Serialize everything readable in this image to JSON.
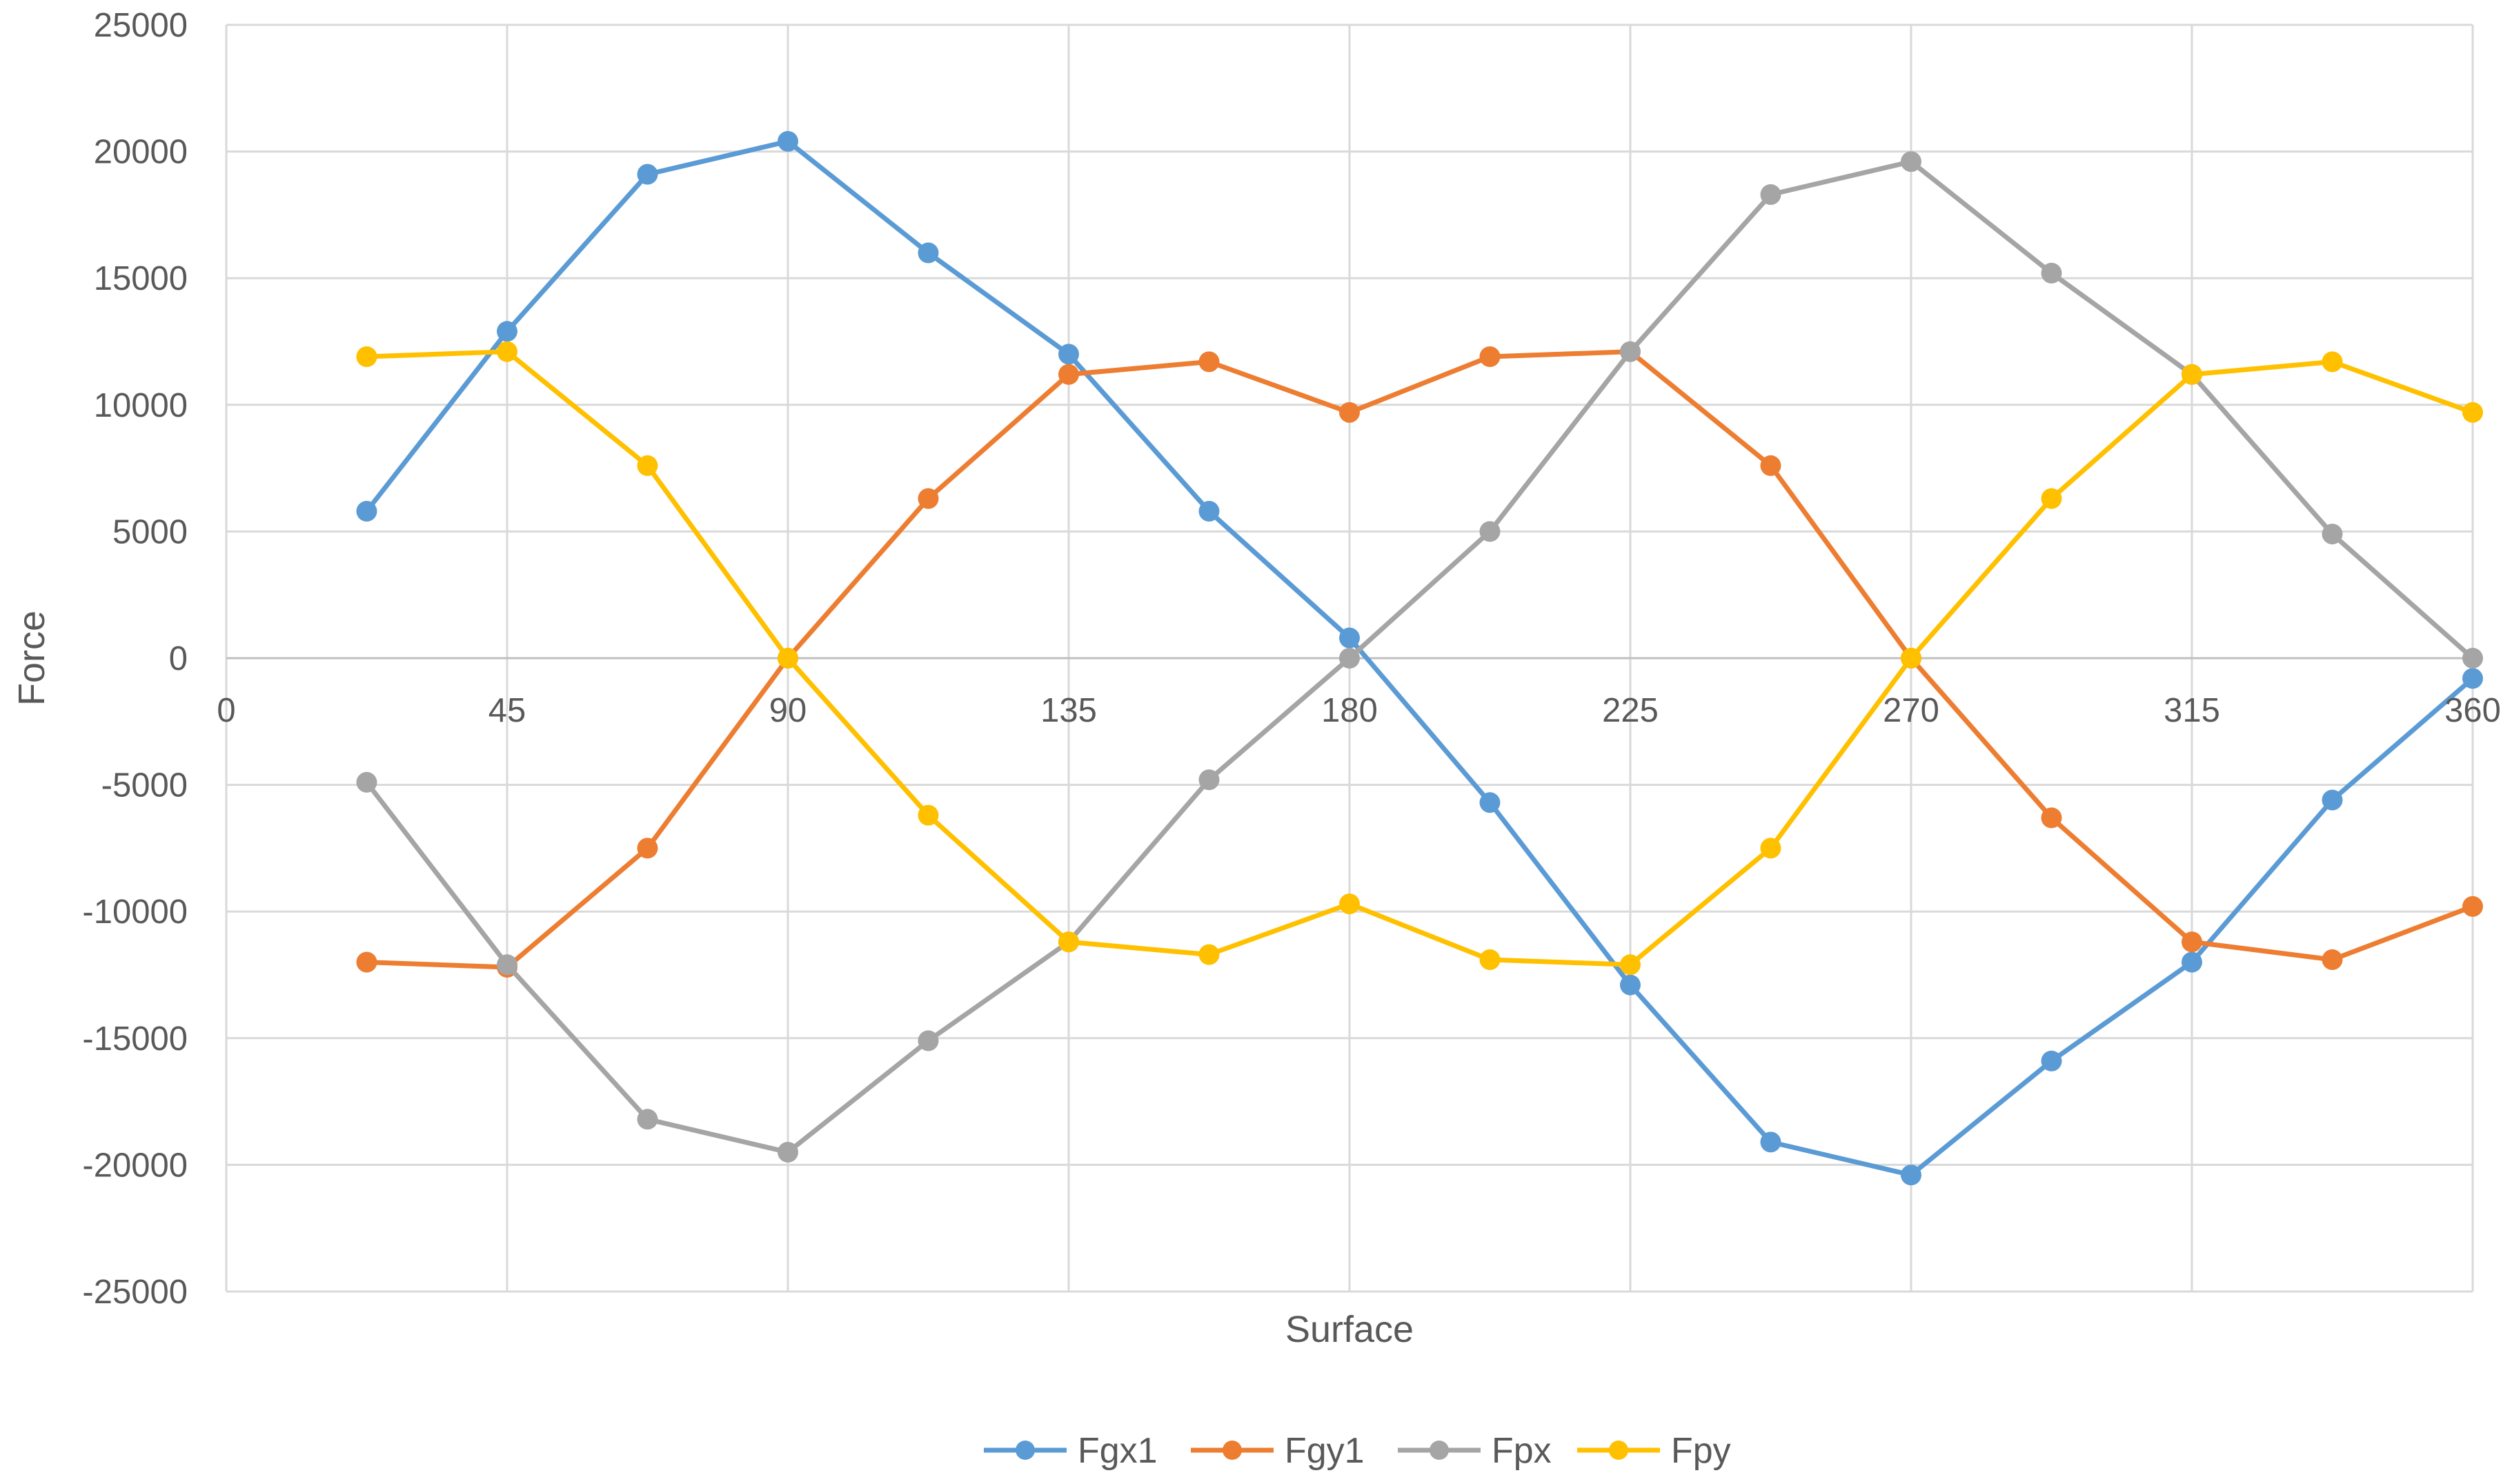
{
  "chart_data": {
    "type": "line",
    "title": "",
    "xlabel": "Surface",
    "ylabel": "Force",
    "xlim": [
      0,
      360
    ],
    "ylim": [
      -25000,
      25000
    ],
    "x_ticks": [
      0,
      45,
      90,
      135,
      180,
      225,
      270,
      315,
      360
    ],
    "x_tick_labels": [
      "0",
      "45",
      "90",
      "135",
      "180",
      "225",
      "270",
      "315",
      "360"
    ],
    "y_ticks": [
      25000,
      20000,
      15000,
      10000,
      5000,
      0,
      -5000,
      -10000,
      -15000,
      -20000,
      -25000
    ],
    "y_tick_labels": [
      "25000",
      "20000",
      "15000",
      "10000",
      "5000",
      "0",
      "-5000",
      "-10000",
      "-15000",
      "-20000",
      "-25000"
    ],
    "grid": true,
    "legend_position": "bottom",
    "x": [
      22.5,
      45,
      67.5,
      90,
      112.5,
      135,
      157.5,
      180,
      202.5,
      225,
      247.5,
      270,
      292.5,
      315,
      337.5,
      360
    ],
    "series": [
      {
        "name": "Fgx1",
        "color": "#5B9BD5",
        "values": [
          5800,
          12900,
          19100,
          20400,
          16000,
          12000,
          5800,
          800,
          -5700,
          -12900,
          -19100,
          -20400,
          -15900,
          -12000,
          -5600,
          -800
        ]
      },
      {
        "name": "Fgy1",
        "color": "#ED7D31",
        "values": [
          -12000,
          -12200,
          -7500,
          0,
          6300,
          11200,
          11700,
          9700,
          11900,
          12100,
          7600,
          0,
          -6300,
          -11200,
          -11900,
          -9800
        ]
      },
      {
        "name": "Fpx",
        "color": "#A5A5A5",
        "values": [
          -4900,
          -12100,
          -18200,
          -19500,
          -15100,
          -11200,
          -4800,
          0,
          5000,
          12100,
          18300,
          19600,
          15200,
          11200,
          4900,
          0
        ]
      },
      {
        "name": "Fpy",
        "color": "#FFC000",
        "values": [
          11900,
          12100,
          7600,
          0,
          -6200,
          -11200,
          -11700,
          -9700,
          -11900,
          -12100,
          -7500,
          0,
          6300,
          11200,
          11700,
          9700
        ]
      }
    ]
  }
}
